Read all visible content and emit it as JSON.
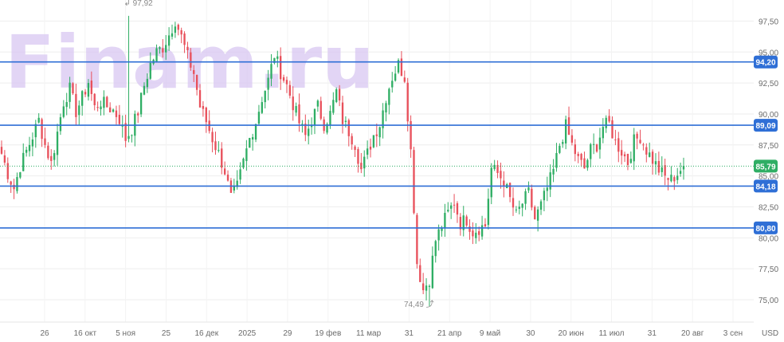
{
  "watermark": "Finam.ru",
  "currency_label": "USD",
  "colors": {
    "up": "#2fae64",
    "down": "#e8505b",
    "level_line": "#2f6fd6",
    "last_price": "#2fae64"
  },
  "chart_data": {
    "type": "candlestick",
    "title": "",
    "xlabel": "",
    "ylabel": "",
    "ylim": [
      73.2,
      99.2
    ],
    "y_ticks": [
      "97,50",
      "95,00",
      "92,50",
      "90,00",
      "87,50",
      "85,00",
      "82,50",
      "80,00",
      "77,50",
      "75,00"
    ],
    "x_ticks": [
      "26",
      "16 окт",
      "5 ноя",
      "25",
      "16 дек",
      "2025",
      "29",
      "19 фев",
      "11 мар",
      "31",
      "21 апр",
      "9 май",
      "30",
      "20 июн",
      "11 июл",
      "31",
      "20 авг",
      "3 сен"
    ],
    "levels": [
      {
        "value": 94.2,
        "label": "94,20"
      },
      {
        "value": 89.09,
        "label": "89,09"
      },
      {
        "value": 84.18,
        "label": "84,18"
      },
      {
        "value": 80.8,
        "label": "80,80"
      }
    ],
    "last_price": {
      "value": 85.79,
      "label": "85,79"
    },
    "max_label": "97,92",
    "min_label": "74,49",
    "max_value": 97.92,
    "min_value": 74.49,
    "grid": true,
    "close_path": [
      86.8,
      85.2,
      84.0,
      85.8,
      87.0,
      88.2,
      89.5,
      87.5,
      86.0,
      88.5,
      91.0,
      92.0,
      90.2,
      91.3,
      92.6,
      90.5,
      91.0,
      90.6,
      90.3,
      89.6,
      88.0,
      88.8,
      90.2,
      92.3,
      94.0,
      95.0,
      95.4,
      96.4,
      97.6,
      96.2,
      94.6,
      93.3,
      90.6,
      89.4,
      88.0,
      86.8,
      85.4,
      83.2,
      84.1,
      86.1,
      88.0,
      89.4,
      91.3,
      92.7,
      94.8,
      93.4,
      92.3,
      90.8,
      89.3,
      88.2,
      89.5,
      90.6,
      89.2,
      90.0,
      91.8,
      89.5,
      88.6,
      87.6,
      85.5,
      86.8,
      88.3,
      89.2,
      91.4,
      93.0,
      94.0,
      93.0,
      87.0,
      78.0,
      75.8,
      76.7,
      79.8,
      81.0,
      82.0,
      82.9,
      81.2,
      81.5,
      80.5,
      80.8,
      81.0,
      85.6,
      85.2,
      84.6,
      83.1,
      81.8,
      82.8,
      83.6,
      81.5,
      82.6,
      84.0,
      85.4,
      87.5,
      89.0,
      87.5,
      86.3,
      85.6,
      87.1,
      87.5,
      89.0,
      89.2,
      87.7,
      87.0,
      86.1,
      87.8,
      88.2,
      87.1,
      86.3,
      85.5,
      84.9,
      84.7,
      85.2,
      85.8
    ]
  }
}
